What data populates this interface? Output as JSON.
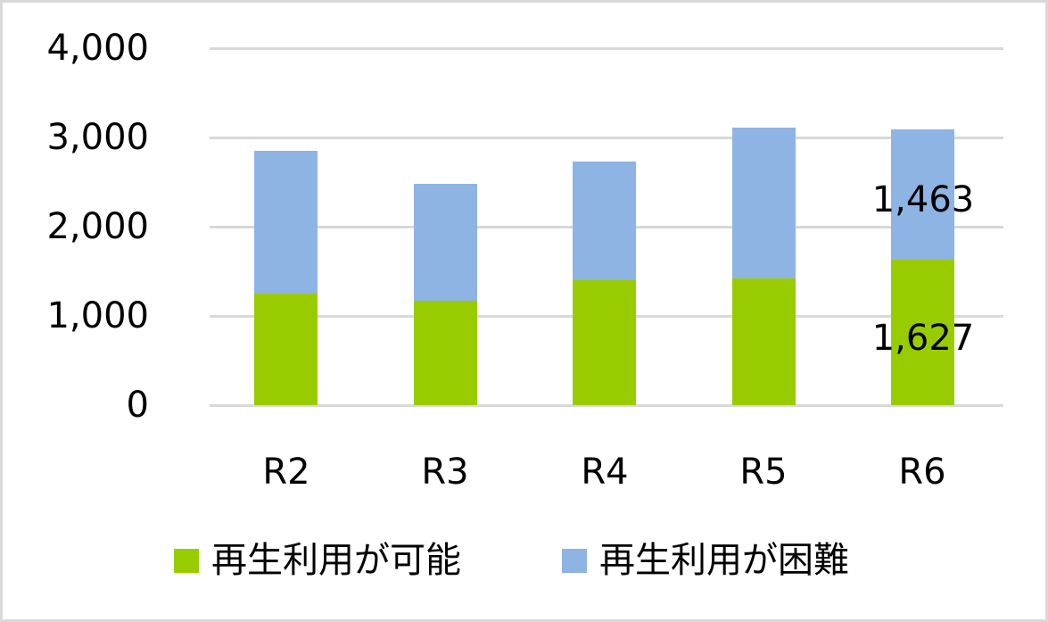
{
  "chart_data": {
    "type": "bar",
    "stacked": true,
    "title": "",
    "xlabel": "",
    "ylabel": "",
    "categories": [
      "R2",
      "R3",
      "R4",
      "R5",
      "R6"
    ],
    "series": [
      {
        "name": "再生利用が可能",
        "color": "#99cc00",
        "values": [
          1253,
          1170,
          1400,
          1417,
          1627
        ]
      },
      {
        "name": "再生利用が困難",
        "color": "#8eb4e3",
        "values": [
          1597,
          1310,
          1330,
          1690,
          1463
        ]
      }
    ],
    "ylim": [
      0,
      4000
    ],
    "yticks": [
      "0",
      "1,000",
      "2,000",
      "3,000",
      "4,000"
    ],
    "grid": true,
    "legend_position": "bottom",
    "data_labels": [
      {
        "category": "R6",
        "series": "再生利用が可能",
        "text": "1,627"
      },
      {
        "category": "R6",
        "series": "再生利用が困難",
        "text": "1,463"
      }
    ]
  },
  "axis": {
    "y_ticks": [
      "4,000",
      "3,000",
      "2,000",
      "1,000",
      "0"
    ],
    "x_ticks": [
      "R2",
      "R3",
      "R4",
      "R5",
      "R6"
    ]
  },
  "labels": {
    "r6_green": "1,627",
    "r6_blue": "1,463"
  },
  "legend": {
    "items": [
      {
        "label": "再生利用が可能",
        "color": "#99cc00"
      },
      {
        "label": "再生利用が困難",
        "color": "#8eb4e3"
      }
    ]
  },
  "colors": {
    "green": "#99cc00",
    "blue": "#8eb4e3",
    "grid": "#d9d9d9",
    "border": "#d9d9d9"
  }
}
